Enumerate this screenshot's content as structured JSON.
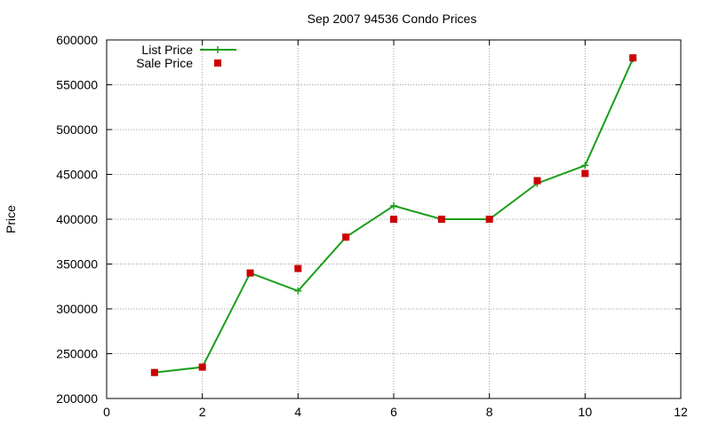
{
  "chart_data": {
    "type": "line",
    "title": "Sep 2007 94536 Condo Prices",
    "xlabel": "",
    "ylabel": "Price",
    "xlim": [
      0,
      12
    ],
    "ylim": [
      200000,
      600000
    ],
    "xticks": [
      0,
      2,
      4,
      6,
      8,
      10,
      12
    ],
    "yticks": [
      200000,
      250000,
      300000,
      350000,
      400000,
      450000,
      500000,
      550000,
      600000
    ],
    "grid": true,
    "legend_position": "top-left",
    "series": [
      {
        "name": "List Price",
        "style": "line-plus",
        "color": "#1a9e1a",
        "x": [
          1,
          2,
          3,
          4,
          5,
          6,
          7,
          8,
          9,
          10,
          11
        ],
        "y": [
          229000,
          235000,
          340000,
          320000,
          380000,
          415000,
          400000,
          400000,
          440000,
          460000,
          579000
        ]
      },
      {
        "name": "Sale Price",
        "style": "square",
        "color": "#cc0000",
        "x": [
          1,
          2,
          3,
          4,
          5,
          6,
          7,
          8,
          9,
          10,
          11
        ],
        "y": [
          229000,
          235000,
          340000,
          345000,
          380000,
          400000,
          400000,
          400000,
          443000,
          451000,
          580000
        ]
      }
    ]
  }
}
